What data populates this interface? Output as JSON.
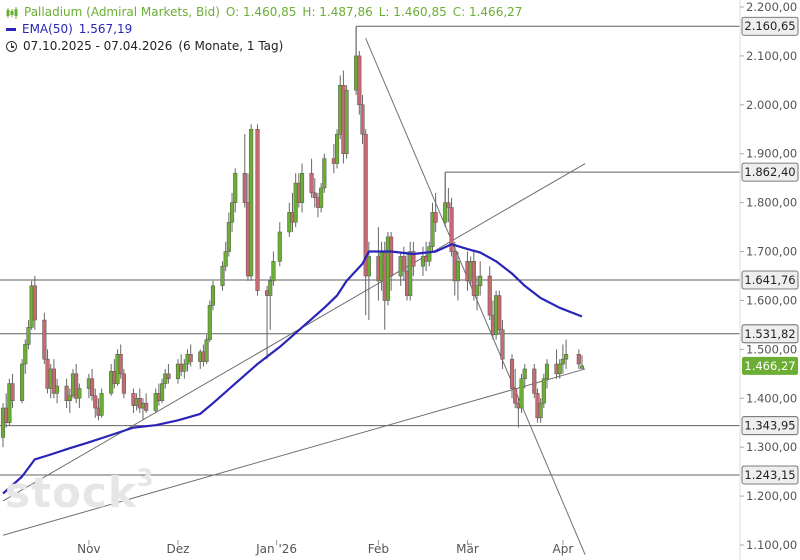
{
  "legend": {
    "instrument": "Palladium (Admiral Markets, Bid)",
    "open": "O: 1.460,85",
    "high": "H: 1.487,86",
    "low": "L: 1.460,85",
    "close": "C: 1.466,27",
    "ema_label": "EMA(50)",
    "ema_value": "1.567,19",
    "range": "07.10.2025 - 07.04.2026",
    "period": "(6 Monate, 1 Tag)"
  },
  "watermark": {
    "text": "stock",
    "sup": "3"
  },
  "colors": {
    "up": "#6cae34",
    "down": "#c46a72",
    "ema": "#2a25b8",
    "last": "#6cae34",
    "line": "#707070"
  },
  "chart_data": {
    "type": "candlestick",
    "ylim": [
      1080,
      2220
    ],
    "y_ticks": [
      {
        "v": 1100,
        "label": "1.100,00"
      },
      {
        "v": 1200,
        "label": "1.200,00"
      },
      {
        "v": 1300,
        "label": "1.300,00"
      },
      {
        "v": 1400,
        "label": "1.400,00"
      },
      {
        "v": 1500,
        "label": "1.500,00"
      },
      {
        "v": 1600,
        "label": "1.600,00"
      },
      {
        "v": 1700,
        "label": "1.700,00"
      },
      {
        "v": 1800,
        "label": "1.800,00"
      },
      {
        "v": 1900,
        "label": "1.900,00"
      },
      {
        "v": 2000,
        "label": "2.000,00"
      },
      {
        "v": 2100,
        "label": "2.100,00"
      },
      {
        "v": 2200,
        "label": "2.200,00"
      }
    ],
    "x_ticks": [
      {
        "date": "2025-11-03",
        "label": "Nov"
      },
      {
        "date": "2025-12-01",
        "label": "Dez"
      },
      {
        "date": "2026-01-01",
        "label": "Jan '26"
      },
      {
        "date": "2026-02-02",
        "label": "Feb"
      },
      {
        "date": "2026-03-02",
        "label": "Mär"
      },
      {
        "date": "2026-04-01",
        "label": "Apr"
      }
    ],
    "price_levels": [
      {
        "value": 2160.65,
        "label": "2.160,65"
      },
      {
        "value": 1862.4,
        "label": "1.862,40"
      },
      {
        "value": 1641.76,
        "label": "1.641,76"
      },
      {
        "value": 1531.82,
        "label": "1.531,82"
      },
      {
        "value": 1343.95,
        "label": "1.343,95"
      },
      {
        "value": 1243.15,
        "label": "1.243,15"
      }
    ],
    "last_price": {
      "value": 1466.27,
      "label": "1.466,27"
    },
    "trendlines": [
      {
        "from": [
          "2026-01-29",
          2136
        ],
        "to": [
          "2026-04-08",
          1080
        ]
      },
      {
        "from": [
          "2025-10-07",
          1190
        ],
        "to": [
          "2026-04-08",
          1880
        ]
      },
      {
        "from": [
          "2025-10-07",
          1120
        ],
        "to": [
          "2026-04-08",
          1460
        ]
      }
    ],
    "ohlc": [
      [
        "2025-10-07",
        1320,
        1390,
        1300,
        1380
      ],
      [
        "2025-10-08",
        1380,
        1410,
        1340,
        1350
      ],
      [
        "2025-10-09",
        1350,
        1440,
        1345,
        1430
      ],
      [
        "2025-10-10",
        1430,
        1450,
        1380,
        1395
      ],
      [
        "2025-10-13",
        1395,
        1480,
        1390,
        1470
      ],
      [
        "2025-10-14",
        1470,
        1520,
        1450,
        1510
      ],
      [
        "2025-10-15",
        1510,
        1560,
        1500,
        1545
      ],
      [
        "2025-10-16",
        1545,
        1640,
        1540,
        1630
      ],
      [
        "2025-10-17",
        1630,
        1650,
        1540,
        1560
      ],
      [
        "2025-10-20",
        1560,
        1575,
        1470,
        1480
      ],
      [
        "2025-10-21",
        1480,
        1500,
        1410,
        1420
      ],
      [
        "2025-10-22",
        1420,
        1470,
        1400,
        1460
      ],
      [
        "2025-10-23",
        1460,
        1480,
        1400,
        1410
      ],
      [
        "2025-10-24",
        1410,
        1440,
        1390,
        1425
      ],
      [
        "2025-10-27",
        1425,
        1440,
        1380,
        1395
      ],
      [
        "2025-10-28",
        1395,
        1420,
        1370,
        1405
      ],
      [
        "2025-10-29",
        1405,
        1460,
        1400,
        1450
      ],
      [
        "2025-10-30",
        1450,
        1470,
        1390,
        1400
      ],
      [
        "2025-10-31",
        1400,
        1430,
        1380,
        1420
      ],
      [
        "2025-11-03",
        1420,
        1450,
        1400,
        1440
      ],
      [
        "2025-11-04",
        1440,
        1460,
        1395,
        1405
      ],
      [
        "2025-11-05",
        1405,
        1420,
        1360,
        1380
      ],
      [
        "2025-11-06",
        1380,
        1400,
        1355,
        1365
      ],
      [
        "2025-11-07",
        1365,
        1420,
        1360,
        1410
      ],
      [
        "2025-11-10",
        1410,
        1470,
        1405,
        1455
      ],
      [
        "2025-11-11",
        1455,
        1480,
        1420,
        1430
      ],
      [
        "2025-11-12",
        1430,
        1500,
        1425,
        1490
      ],
      [
        "2025-11-13",
        1490,
        1510,
        1440,
        1450
      ],
      [
        "2025-11-14",
        1450,
        1460,
        1400,
        1410
      ],
      [
        "2025-11-17",
        1410,
        1420,
        1370,
        1385
      ],
      [
        "2025-11-18",
        1385,
        1410,
        1375,
        1400
      ],
      [
        "2025-11-19",
        1400,
        1420,
        1370,
        1380
      ],
      [
        "2025-11-20",
        1380,
        1400,
        1355,
        1390
      ],
      [
        "2025-11-21",
        1390,
        1410,
        1370,
        1375
      ],
      [
        "2025-11-24",
        1375,
        1420,
        1370,
        1410
      ],
      [
        "2025-11-25",
        1410,
        1430,
        1385,
        1395
      ],
      [
        "2025-11-26",
        1395,
        1440,
        1390,
        1430
      ],
      [
        "2025-11-27",
        1430,
        1460,
        1420,
        1450
      ],
      [
        "2025-11-28",
        1450,
        1470,
        1430,
        1440
      ],
      [
        "2025-12-01",
        1440,
        1480,
        1430,
        1470
      ],
      [
        "2025-12-02",
        1470,
        1490,
        1445,
        1455
      ],
      [
        "2025-12-03",
        1455,
        1480,
        1440,
        1470
      ],
      [
        "2025-12-04",
        1470,
        1500,
        1455,
        1490
      ],
      [
        "2025-12-05",
        1490,
        1510,
        1465,
        1475
      ],
      [
        "2025-12-08",
        1475,
        1500,
        1460,
        1495
      ],
      [
        "2025-12-09",
        1495,
        1510,
        1465,
        1475
      ],
      [
        "2025-12-10",
        1475,
        1530,
        1470,
        1520
      ],
      [
        "2025-12-11",
        1520,
        1600,
        1515,
        1590
      ],
      [
        "2025-12-12",
        1590,
        1640,
        1580,
        1630
      ],
      [
        "2025-12-15",
        1630,
        1680,
        1620,
        1670
      ],
      [
        "2025-12-16",
        1670,
        1720,
        1660,
        1700
      ],
      [
        "2025-12-17",
        1700,
        1780,
        1690,
        1760
      ],
      [
        "2025-12-18",
        1760,
        1820,
        1740,
        1800
      ],
      [
        "2025-12-19",
        1800,
        1870,
        1780,
        1860
      ],
      [
        "2025-12-22",
        1860,
        1940,
        1790,
        1800
      ],
      [
        "2025-12-23",
        1800,
        1860,
        1640,
        1650
      ],
      [
        "2025-12-24",
        1650,
        1960,
        1640,
        1950
      ],
      [
        "2025-12-26",
        1950,
        1960,
        1610,
        1620
      ],
      [
        "2025-12-29",
        1620,
        1630,
        1480,
        1610
      ],
      [
        "2025-12-30",
        1610,
        1650,
        1540,
        1640
      ],
      [
        "2025-12-31",
        1640,
        1700,
        1630,
        1680
      ],
      [
        "2026-01-02",
        1680,
        1760,
        1670,
        1740
      ],
      [
        "2026-01-05",
        1740,
        1800,
        1730,
        1780
      ],
      [
        "2026-01-06",
        1780,
        1820,
        1740,
        1760
      ],
      [
        "2026-01-07",
        1760,
        1860,
        1750,
        1840
      ],
      [
        "2026-01-08",
        1840,
        1860,
        1790,
        1800
      ],
      [
        "2026-01-09",
        1800,
        1880,
        1780,
        1860
      ],
      [
        "2026-01-12",
        1860,
        1890,
        1810,
        1820
      ],
      [
        "2026-01-13",
        1820,
        1850,
        1790,
        1810
      ],
      [
        "2026-01-14",
        1810,
        1820,
        1770,
        1790
      ],
      [
        "2026-01-15",
        1790,
        1840,
        1780,
        1830
      ],
      [
        "2026-01-16",
        1830,
        1900,
        1820,
        1890
      ],
      [
        "2026-01-19",
        1890,
        1920,
        1860,
        1880
      ],
      [
        "2026-01-20",
        1880,
        1950,
        1870,
        1940
      ],
      [
        "2026-01-21",
        1940,
        2060,
        1930,
        2040
      ],
      [
        "2026-01-22",
        2040,
        2070,
        1880,
        1900
      ],
      [
        "2026-01-23",
        1900,
        2040,
        1890,
        2030
      ],
      [
        "2026-01-26",
        2030,
        2160,
        2020,
        2100
      ],
      [
        "2026-01-27",
        2100,
        2110,
        1980,
        2000
      ],
      [
        "2026-01-28",
        2000,
        2020,
        1920,
        1940
      ],
      [
        "2026-01-29",
        1940,
        1950,
        1570,
        1650
      ],
      [
        "2026-01-30",
        1650,
        1720,
        1560,
        1690
      ],
      [
        "2026-02-02",
        1690,
        1750,
        1600,
        1640
      ],
      [
        "2026-02-03",
        1640,
        1720,
        1620,
        1700
      ],
      [
        "2026-02-04",
        1700,
        1720,
        1540,
        1600
      ],
      [
        "2026-02-05",
        1600,
        1740,
        1590,
        1730
      ],
      [
        "2026-02-06",
        1730,
        1740,
        1620,
        1650
      ],
      [
        "2026-02-09",
        1650,
        1700,
        1630,
        1690
      ],
      [
        "2026-02-10",
        1690,
        1710,
        1640,
        1660
      ],
      [
        "2026-02-11",
        1660,
        1700,
        1600,
        1610
      ],
      [
        "2026-02-12",
        1610,
        1720,
        1600,
        1700
      ],
      [
        "2026-02-13",
        1700,
        1720,
        1650,
        1670
      ],
      [
        "2026-02-16",
        1670,
        1710,
        1650,
        1690
      ],
      [
        "2026-02-17",
        1690,
        1720,
        1660,
        1680
      ],
      [
        "2026-02-18",
        1680,
        1720,
        1670,
        1710
      ],
      [
        "2026-02-19",
        1710,
        1800,
        1700,
        1780
      ],
      [
        "2026-02-20",
        1780,
        1820,
        1740,
        1760
      ],
      [
        "2026-02-23",
        1760,
        1860,
        1750,
        1800
      ],
      [
        "2026-02-24",
        1800,
        1830,
        1760,
        1790
      ],
      [
        "2026-02-25",
        1790,
        1810,
        1690,
        1700
      ],
      [
        "2026-02-26",
        1700,
        1720,
        1610,
        1640
      ],
      [
        "2026-02-27",
        1640,
        1700,
        1600,
        1680
      ],
      [
        "2026-03-02",
        1680,
        1700,
        1620,
        1640
      ],
      [
        "2026-03-03",
        1640,
        1690,
        1630,
        1680
      ],
      [
        "2026-03-04",
        1680,
        1700,
        1600,
        1610
      ],
      [
        "2026-03-05",
        1610,
        1650,
        1580,
        1630
      ],
      [
        "2026-03-06",
        1630,
        1680,
        1610,
        1650
      ],
      [
        "2026-03-09",
        1650,
        1670,
        1560,
        1570
      ],
      [
        "2026-03-10",
        1570,
        1600,
        1520,
        1530
      ],
      [
        "2026-03-11",
        1530,
        1620,
        1520,
        1610
      ],
      [
        "2026-03-12",
        1610,
        1620,
        1530,
        1540
      ],
      [
        "2026-03-13",
        1540,
        1560,
        1460,
        1480
      ],
      [
        "2026-03-16",
        1480,
        1490,
        1400,
        1420
      ],
      [
        "2026-03-17",
        1420,
        1460,
        1380,
        1390
      ],
      [
        "2026-03-18",
        1390,
        1400,
        1340,
        1380
      ],
      [
        "2026-03-19",
        1380,
        1450,
        1370,
        1440
      ],
      [
        "2026-03-20",
        1440,
        1470,
        1420,
        1460
      ],
      [
        "2026-03-23",
        1460,
        1470,
        1400,
        1410
      ],
      [
        "2026-03-24",
        1410,
        1420,
        1350,
        1360
      ],
      [
        "2026-03-25",
        1360,
        1400,
        1350,
        1390
      ],
      [
        "2026-03-26",
        1390,
        1450,
        1380,
        1440
      ],
      [
        "2026-03-27",
        1440,
        1480,
        1420,
        1470
      ],
      [
        "2026-03-30",
        1470,
        1500,
        1440,
        1450
      ],
      [
        "2026-03-31",
        1450,
        1480,
        1440,
        1470
      ],
      [
        "2026-04-01",
        1470,
        1510,
        1450,
        1480
      ],
      [
        "2026-04-02",
        1480,
        1520,
        1460,
        1490
      ],
      [
        "2026-04-06",
        1490,
        1500,
        1460,
        1470
      ],
      [
        "2026-04-07",
        1460.85,
        1487.86,
        1460.85,
        1466.27
      ]
    ],
    "ema50": [
      [
        "2025-10-07",
        1205
      ],
      [
        "2025-10-13",
        1240
      ],
      [
        "2025-10-17",
        1275
      ],
      [
        "2025-10-22",
        1285
      ],
      [
        "2025-10-28",
        1298
      ],
      [
        "2025-11-03",
        1310
      ],
      [
        "2025-11-10",
        1325
      ],
      [
        "2025-11-17",
        1340
      ],
      [
        "2025-11-24",
        1345
      ],
      [
        "2025-12-01",
        1355
      ],
      [
        "2025-12-08",
        1368
      ],
      [
        "2025-12-12",
        1390
      ],
      [
        "2025-12-19",
        1430
      ],
      [
        "2025-12-26",
        1470
      ],
      [
        "2026-01-02",
        1505
      ],
      [
        "2026-01-09",
        1545
      ],
      [
        "2026-01-16",
        1585
      ],
      [
        "2026-01-20",
        1610
      ],
      [
        "2026-01-23",
        1640
      ],
      [
        "2026-01-28",
        1675
      ],
      [
        "2026-01-30",
        1700
      ],
      [
        "2026-02-06",
        1700
      ],
      [
        "2026-02-13",
        1695
      ],
      [
        "2026-02-20",
        1700
      ],
      [
        "2026-02-25",
        1715
      ],
      [
        "2026-03-02",
        1705
      ],
      [
        "2026-03-06",
        1698
      ],
      [
        "2026-03-11",
        1680
      ],
      [
        "2026-03-16",
        1655
      ],
      [
        "2026-03-20",
        1630
      ],
      [
        "2026-03-25",
        1605
      ],
      [
        "2026-03-31",
        1585
      ],
      [
        "2026-04-07",
        1567.19
      ]
    ]
  }
}
